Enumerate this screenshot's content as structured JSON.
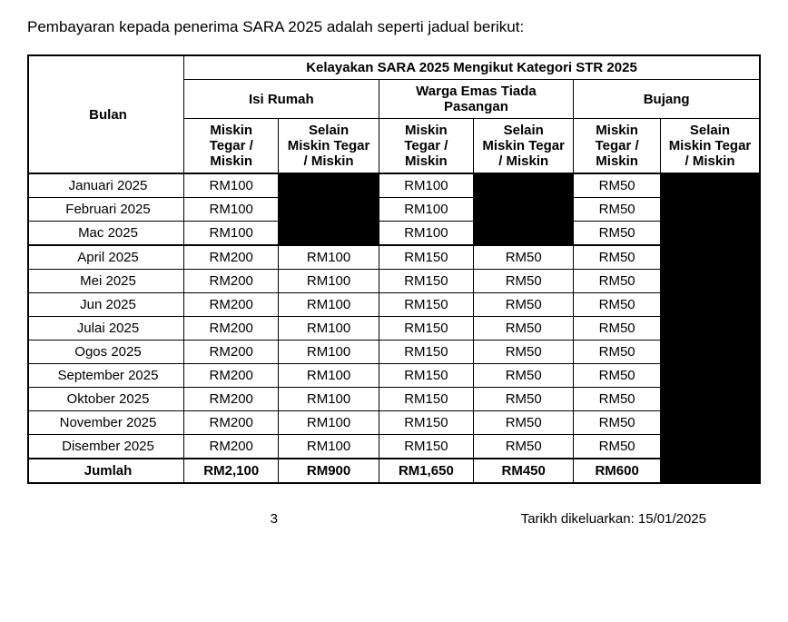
{
  "intro": "Pembayaran kepada penerima SARA 2025 adalah seperti jadual berikut:",
  "table": {
    "bulan_header": "Bulan",
    "main_header": "Kelayakan SARA 2025 Mengikut Kategori STR 2025",
    "cat1": "Isi Rumah",
    "cat2": "Warga Emas Tiada Pasangan",
    "cat3": "Bujang",
    "sub_a": "Miskin Tegar / Miskin",
    "sub_b": "Selain Miskin Tegar / Miskin",
    "rows": [
      {
        "m": "Januari 2025",
        "c1a": "RM100",
        "c1b": "",
        "c2a": "RM100",
        "c2b": "",
        "c3a": "RM50",
        "c3b": ""
      },
      {
        "m": "Februari 2025",
        "c1a": "RM100",
        "c1b": "",
        "c2a": "RM100",
        "c2b": "",
        "c3a": "RM50",
        "c3b": ""
      },
      {
        "m": "Mac 2025",
        "c1a": "RM100",
        "c1b": "",
        "c2a": "RM100",
        "c2b": "",
        "c3a": "RM50",
        "c3b": ""
      },
      {
        "m": "April 2025",
        "c1a": "RM200",
        "c1b": "RM100",
        "c2a": "RM150",
        "c2b": "RM50",
        "c3a": "RM50",
        "c3b": ""
      },
      {
        "m": "Mei 2025",
        "c1a": "RM200",
        "c1b": "RM100",
        "c2a": "RM150",
        "c2b": "RM50",
        "c3a": "RM50",
        "c3b": ""
      },
      {
        "m": "Jun 2025",
        "c1a": "RM200",
        "c1b": "RM100",
        "c2a": "RM150",
        "c2b": "RM50",
        "c3a": "RM50",
        "c3b": ""
      },
      {
        "m": "Julai 2025",
        "c1a": "RM200",
        "c1b": "RM100",
        "c2a": "RM150",
        "c2b": "RM50",
        "c3a": "RM50",
        "c3b": ""
      },
      {
        "m": "Ogos 2025",
        "c1a": "RM200",
        "c1b": "RM100",
        "c2a": "RM150",
        "c2b": "RM50",
        "c3a": "RM50",
        "c3b": ""
      },
      {
        "m": "September 2025",
        "c1a": "RM200",
        "c1b": "RM100",
        "c2a": "RM150",
        "c2b": "RM50",
        "c3a": "RM50",
        "c3b": ""
      },
      {
        "m": "Oktober 2025",
        "c1a": "RM200",
        "c1b": "RM100",
        "c2a": "RM150",
        "c2b": "RM50",
        "c3a": "RM50",
        "c3b": ""
      },
      {
        "m": "November 2025",
        "c1a": "RM200",
        "c1b": "RM100",
        "c2a": "RM150",
        "c2b": "RM50",
        "c3a": "RM50",
        "c3b": ""
      },
      {
        "m": "Disember 2025",
        "c1a": "RM200",
        "c1b": "RM100",
        "c2a": "RM150",
        "c2b": "RM50",
        "c3a": "RM50",
        "c3b": ""
      }
    ],
    "total": {
      "m": "Jumlah",
      "c1a": "RM2,100",
      "c1b": "RM900",
      "c2a": "RM1,650",
      "c2b": "RM450",
      "c3a": "RM600",
      "c3b": ""
    }
  },
  "footer": {
    "page": "3",
    "date_label": "Tarikh dikeluarkan: 15/01/2025"
  }
}
